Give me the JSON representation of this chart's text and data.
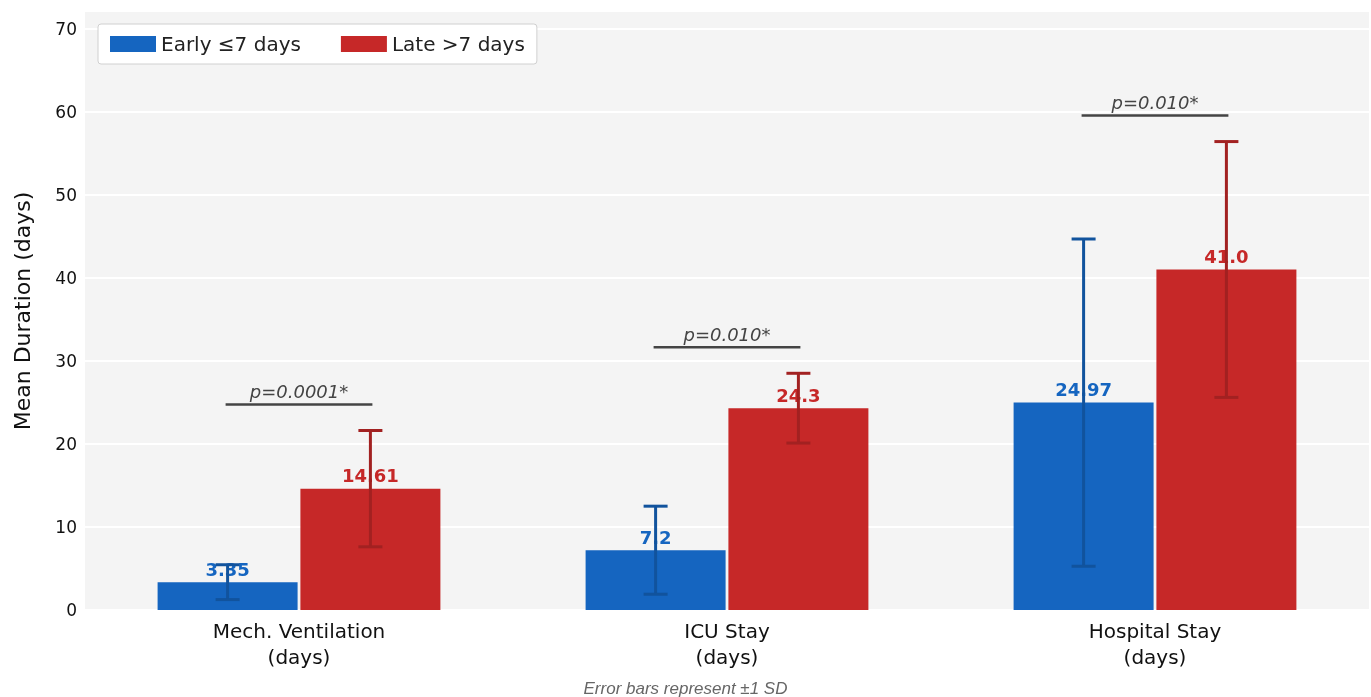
{
  "chart_data": {
    "type": "bar",
    "ylabel": "Mean Duration (days)",
    "categories": [
      "Mech. Ventilation\n(days)",
      "ICU Stay\n(days)",
      "Hospital Stay\n(days)"
    ],
    "series": [
      {
        "name": "Early ≤7 days",
        "color": "#1565c0",
        "values": [
          3.35,
          7.2,
          24.97
        ],
        "errors": [
          2.1,
          5.3,
          19.7
        ],
        "value_labels": [
          "3.35",
          "7.2",
          "24.97"
        ]
      },
      {
        "name": "Late >7 days",
        "color": "#c62828",
        "values": [
          14.61,
          24.3,
          41.0
        ],
        "errors": [
          7.0,
          4.2,
          15.4
        ],
        "value_labels": [
          "14.61",
          "24.3",
          "41.0"
        ]
      }
    ],
    "ylim": [
      0,
      72
    ],
    "yticks": [
      0,
      10,
      20,
      30,
      40,
      50,
      60,
      70
    ],
    "grid": "y",
    "legend": "top left",
    "annotations": [
      "p=0.0001*",
      "p=0.010*",
      "p=0.010*",
      "Error bars represent ±1 SD"
    ]
  }
}
